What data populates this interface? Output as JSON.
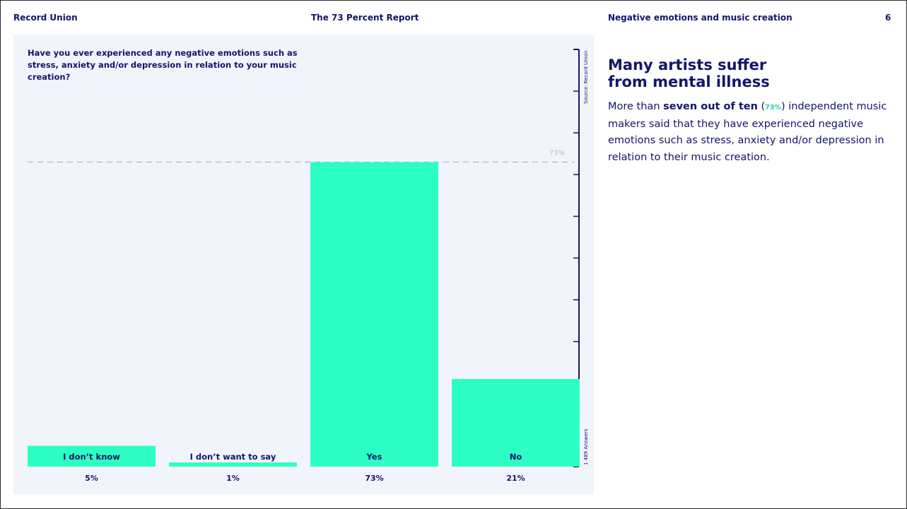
{
  "header": {
    "brand": "Record Union",
    "report_title": "The 73 Percent Report",
    "section_title": "Negative emotions and music creation",
    "page_number": "6"
  },
  "colors": {
    "bar": "#2dffc4",
    "navy": "#14146b",
    "panel": "#f2f4fc",
    "reference_line": "#b4b9d0"
  },
  "chart_data": {
    "type": "bar",
    "title": "Have you ever experienced any negative emotions such as stress, anxiety and/or depression in relation to your music creation?",
    "categories": [
      "I don’t know",
      "I don’t want to say",
      "Yes",
      "No"
    ],
    "values": [
      5,
      1,
      73,
      21
    ],
    "value_labels": [
      "5%",
      "1%",
      "73%",
      "21%"
    ],
    "unit": "%",
    "ylim": [
      0,
      100
    ],
    "reference_line": {
      "value": 73,
      "label": "73%"
    },
    "source_note": "Source: Record Union",
    "answers_note": "1 489 Answers",
    "legend": "none",
    "grid": false
  },
  "article": {
    "heading_line1": "Many artists suffer",
    "heading_line2": "from mental illness",
    "body_before": "More than ",
    "body_bold": "seven out of ten",
    "body_open": " (",
    "body_highlight": "73%",
    "body_after": ") independent music makers said that they have experienced negative emotions such as stress, anxiety and/or depression in relation to their music creation."
  }
}
